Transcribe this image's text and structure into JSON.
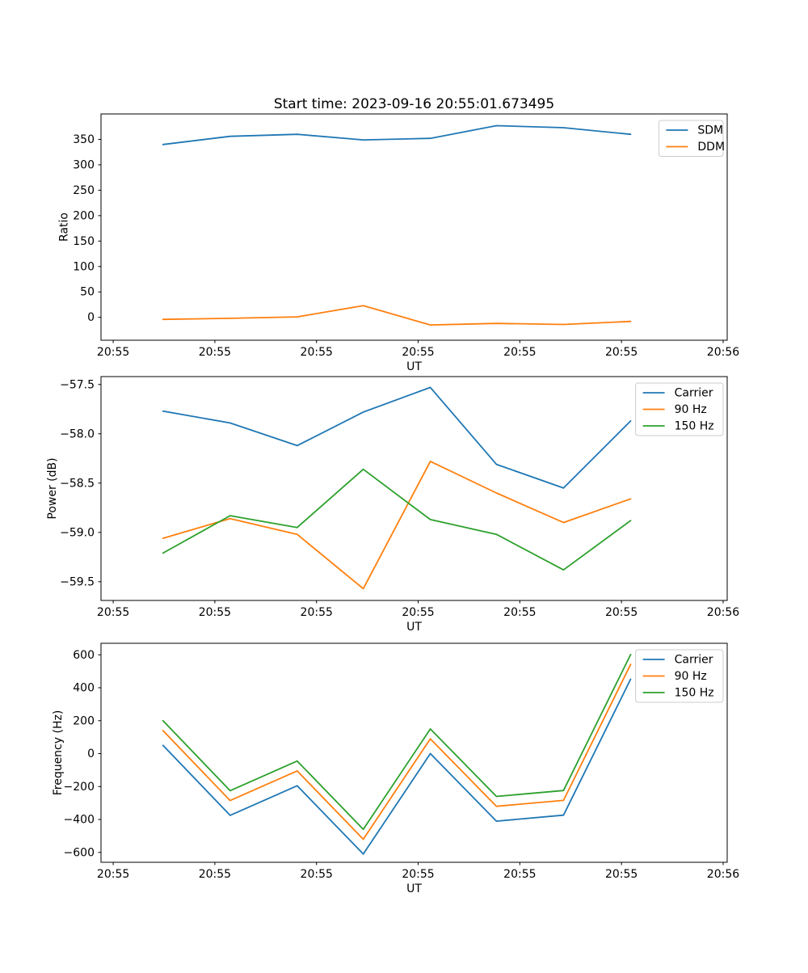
{
  "figure": {
    "title": "Start time: 2023-09-16 20:55:01.673495",
    "background_color": "#ffffff",
    "frame_color": "#000000"
  },
  "colors": {
    "blue": "#1f77b4",
    "orange": "#ff7f0e",
    "green": "#2ca02c",
    "legend_border": "#cccccc"
  },
  "chart_data": [
    {
      "type": "line",
      "title": "Start time: 2023-09-16 20:55:01.673495",
      "xlabel": "UT",
      "ylabel": "Ratio",
      "grid": false,
      "legend_position": "upper right",
      "xlim_s": [
        -1.2,
        60.4
      ],
      "x_ticks": {
        "values": [
          0,
          10,
          20,
          30,
          40,
          50,
          60
        ],
        "labels": [
          "20:55",
          "20:55",
          "20:55",
          "20:55",
          "20:55",
          "20:55",
          "20:56"
        ]
      },
      "ylim": [
        -45,
        400
      ],
      "y_ticks": {
        "values": [
          0,
          50,
          100,
          150,
          200,
          250,
          300,
          350
        ],
        "labels": [
          "0",
          "50",
          "100",
          "150",
          "200",
          "250",
          "300",
          "350"
        ]
      },
      "x_s": [
        4.9,
        11.5,
        18.1,
        24.6,
        31.2,
        37.7,
        44.3,
        50.9
      ],
      "series": [
        {
          "name": "SDM",
          "color": "#1f77b4",
          "values": [
            340,
            356,
            360,
            349,
            352,
            377,
            373,
            360
          ]
        },
        {
          "name": "DDM",
          "color": "#ff7f0e",
          "values": [
            -4,
            -2,
            1,
            23,
            -15,
            -12,
            -14,
            -8
          ]
        }
      ]
    },
    {
      "type": "line",
      "title": "",
      "xlabel": "UT",
      "ylabel": "Power (dB)",
      "grid": false,
      "legend_position": "upper right",
      "xlim_s": [
        -1.2,
        60.4
      ],
      "x_ticks": {
        "values": [
          0,
          10,
          20,
          30,
          40,
          50,
          60
        ],
        "labels": [
          "20:55",
          "20:55",
          "20:55",
          "20:55",
          "20:55",
          "20:55",
          "20:56"
        ]
      },
      "ylim": [
        -59.69,
        -57.42
      ],
      "y_ticks": {
        "values": [
          -57.5,
          -58.0,
          -58.5,
          -59.0,
          -59.5
        ],
        "labels": [
          "−57.5",
          "−58.0",
          "−58.5",
          "−59.0",
          "−59.5"
        ]
      },
      "x_s": [
        4.9,
        11.5,
        18.1,
        24.6,
        31.2,
        37.7,
        44.3,
        50.9
      ],
      "series": [
        {
          "name": "Carrier",
          "color": "#1f77b4",
          "values": [
            -57.77,
            -57.89,
            -58.12,
            -57.78,
            -57.53,
            -58.31,
            -58.55,
            -57.87
          ]
        },
        {
          "name": "90 Hz",
          "color": "#ff7f0e",
          "values": [
            -59.06,
            -58.86,
            -59.02,
            -59.57,
            -58.28,
            -58.6,
            -58.9,
            -58.66
          ]
        },
        {
          "name": "150 Hz",
          "color": "#2ca02c",
          "values": [
            -59.21,
            -58.83,
            -58.95,
            -58.36,
            -58.87,
            -59.02,
            -59.38,
            -58.88
          ]
        }
      ]
    },
    {
      "type": "line",
      "title": "",
      "xlabel": "UT",
      "ylabel": "Frequency (Hz)",
      "grid": false,
      "legend_position": "upper right",
      "xlim_s": [
        -1.2,
        60.4
      ],
      "x_ticks": {
        "values": [
          0,
          10,
          20,
          30,
          40,
          50,
          60
        ],
        "labels": [
          "20:55",
          "20:55",
          "20:55",
          "20:55",
          "20:55",
          "20:55",
          "20:56"
        ]
      },
      "ylim": [
        -660,
        670
      ],
      "y_ticks": {
        "values": [
          -600,
          -400,
          -200,
          0,
          200,
          400,
          600
        ],
        "labels": [
          "−600",
          "−400",
          "−200",
          "0",
          "200",
          "400",
          "600"
        ]
      },
      "x_s": [
        4.9,
        11.5,
        18.1,
        24.6,
        31.2,
        37.7,
        44.3,
        50.9
      ],
      "series": [
        {
          "name": "Carrier",
          "color": "#1f77b4",
          "values": [
            50,
            -375,
            -195,
            -610,
            0,
            -410,
            -374,
            452
          ]
        },
        {
          "name": "90 Hz",
          "color": "#ff7f0e",
          "values": [
            140,
            -285,
            -105,
            -520,
            90,
            -320,
            -284,
            542
          ]
        },
        {
          "name": "150 Hz",
          "color": "#2ca02c",
          "values": [
            200,
            -225,
            -45,
            -460,
            150,
            -260,
            -224,
            602
          ]
        }
      ]
    }
  ]
}
